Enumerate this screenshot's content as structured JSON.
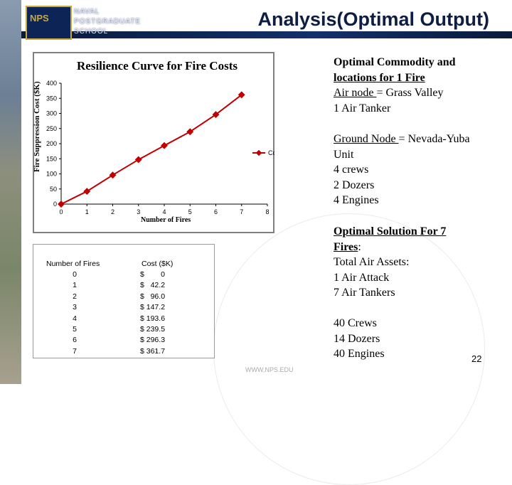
{
  "header": {
    "logo_text": "NPS",
    "school_name_lines": [
      "NAVAL",
      "POSTGRADUATE",
      "SCHOOL"
    ],
    "title": "Analysis(Optimal Output)"
  },
  "chart_data": {
    "type": "line",
    "title": "Resilience Curve for Fire Costs",
    "xlabel": "Number of Fires",
    "ylabel": "Fire Suppression Cost ($K)",
    "x": [
      0,
      1,
      2,
      3,
      4,
      5,
      6,
      7
    ],
    "series": [
      {
        "name": "Cost",
        "values": [
          0,
          42.2,
          96.0,
          147.2,
          193.6,
          239.5,
          296.3,
          361.7
        ],
        "color": "#c00000"
      }
    ],
    "xlim": [
      0,
      8
    ],
    "ylim": [
      0,
      400
    ],
    "x_ticks": [
      "0",
      "1",
      "2",
      "3",
      "4",
      "5",
      "6",
      "7",
      "8"
    ],
    "y_ticks": [
      "0",
      "50",
      "100",
      "150",
      "200",
      "250",
      "300",
      "350",
      "400"
    ],
    "grid": false,
    "legend": "right"
  },
  "table": {
    "headers": [
      "Number of Fires",
      "Cost ($K)"
    ],
    "rows": [
      [
        "0",
        "$        0"
      ],
      [
        "1",
        "$   42.2"
      ],
      [
        "2",
        "$   96.0"
      ],
      [
        "3",
        "$ 147.2"
      ],
      [
        "4",
        "$ 193.6"
      ],
      [
        "5",
        "$ 239.5"
      ],
      [
        "6",
        "$ 296.3"
      ],
      [
        "7",
        "$ 361.7"
      ]
    ]
  },
  "right_panel": {
    "block1": {
      "line1": "Optimal Commodity and",
      "line2": "locations for 1 Fire",
      "air_node_label": "Air node ",
      "air_node_value": "= Grass Valley",
      "line4": "1 Air Tanker"
    },
    "block2": {
      "ground_label": "Ground Node ",
      "ground_value": "= Nevada-Yuba",
      "line2": "Unit",
      "line3": "4 crews",
      "line4": "2 Dozers",
      "line5": "4 Engines"
    },
    "block3": {
      "line1": "Optimal Solution For 7",
      "line2": "Fires",
      "line2_suffix": ":",
      "line3": "Total Air Assets:",
      "line4": "1 Air Attack",
      "line5": "7 Air Tankers"
    },
    "block4": {
      "line1": "40 Crews",
      "line2": "14 Dozers",
      "line3": "40 Engines"
    }
  },
  "footer": {
    "watermark": "WWW.NPS.EDU",
    "page_number": "22"
  }
}
